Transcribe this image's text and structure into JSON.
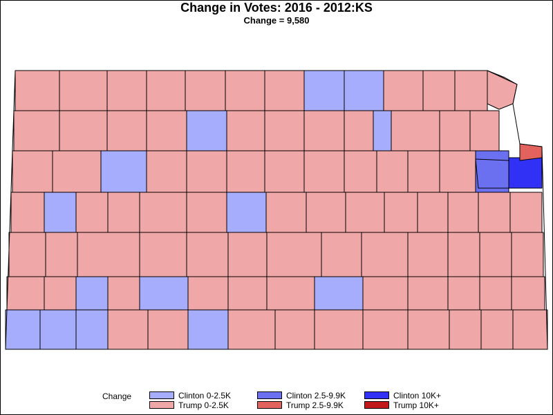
{
  "title": "Change in Votes: 2016 - 2012:KS",
  "subtitle": "Change = 9,580",
  "colors": {
    "clinton_low": "#a7adfd",
    "clinton_mid": "#6b70f1",
    "clinton_high": "#3131f5",
    "trump_low": "#f0a7a7",
    "trump_mid": "#e2625e",
    "trump_high": "#c0181b",
    "border": "#000000"
  },
  "legend": {
    "title": "Change",
    "items": [
      {
        "label": "Clinton 0-2.5K",
        "key": "clinton_low"
      },
      {
        "label": "Clinton 2.5-9.9K",
        "key": "clinton_mid"
      },
      {
        "label": "Clinton 10K+",
        "key": "clinton_high"
      },
      {
        "label": "Trump 0-2.5K",
        "key": "trump_low"
      },
      {
        "label": "Trump 2.5-9.9K",
        "key": "trump_mid"
      },
      {
        "label": "Trump 10K+",
        "key": "trump_high"
      }
    ]
  }
}
